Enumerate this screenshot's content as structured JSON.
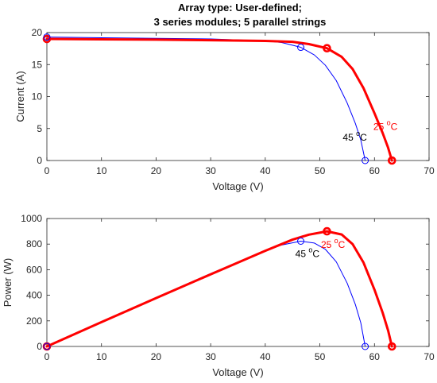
{
  "title_line1": "Array type: User-defined;",
  "title_line2": "3 series modules; 5 parallel strings",
  "colors": {
    "t25": "#ff0000",
    "t45": "#0000ff",
    "axes": "#262626"
  },
  "chart_data": [
    {
      "type": "line",
      "xlabel": "Voltage (V)",
      "ylabel": "Current (A)",
      "xlim": [
        0,
        70
      ],
      "ylim": [
        0,
        20
      ],
      "xticks": [
        "0",
        "10",
        "20",
        "30",
        "40",
        "50",
        "60",
        "70"
      ],
      "yticks": [
        "0",
        "5",
        "10",
        "15",
        "20"
      ],
      "grid": false,
      "series": [
        {
          "name": "25 °C",
          "color": "#ff0000",
          "x": [
            0,
            10,
            20,
            30,
            40,
            45,
            48,
            51.3,
            54,
            56,
            58,
            60,
            61.5,
            62.5,
            63.2
          ],
          "y": [
            19.0,
            18.95,
            18.9,
            18.8,
            18.7,
            18.55,
            18.2,
            17.55,
            16.2,
            14.3,
            11.3,
            7.4,
            4.3,
            2.0,
            0
          ]
        },
        {
          "name": "45 °C",
          "color": "#0000ff",
          "x": [
            0,
            10,
            20,
            30,
            40,
            43,
            46.5,
            49,
            51,
            53,
            55,
            56.5,
            57.5,
            58.3
          ],
          "y": [
            19.3,
            19.2,
            19.1,
            19.0,
            18.7,
            18.45,
            17.7,
            16.5,
            14.9,
            12.5,
            9.0,
            5.8,
            3.2,
            0
          ]
        }
      ],
      "markers": [
        {
          "series": "25 °C",
          "x": 0,
          "y": 19.0
        },
        {
          "series": "25 °C",
          "x": 51.3,
          "y": 17.55
        },
        {
          "series": "25 °C",
          "x": 63.2,
          "y": 0
        },
        {
          "series": "45 °C",
          "x": 0,
          "y": 19.3
        },
        {
          "series": "45 °C",
          "x": 46.5,
          "y": 17.7
        },
        {
          "series": "45 °C",
          "x": 58.3,
          "y": 0
        }
      ],
      "annotations": [
        {
          "text": "45 ",
          "sup": "o",
          "unit": "C",
          "x": 54.2,
          "y": 3.1,
          "color": "#000000"
        },
        {
          "text": "25 ",
          "sup": "o",
          "unit": "C",
          "x": 59.8,
          "y": 4.8,
          "color": "#ff0000"
        }
      ]
    },
    {
      "type": "line",
      "xlabel": "Voltage (V)",
      "ylabel": "Power (W)",
      "xlim": [
        0,
        70
      ],
      "ylim": [
        0,
        1000
      ],
      "xticks": [
        "0",
        "10",
        "20",
        "30",
        "40",
        "50",
        "60",
        "70"
      ],
      "yticks": [
        "0",
        "200",
        "400",
        "600",
        "800",
        "1000"
      ],
      "grid": false,
      "series": [
        {
          "name": "25 °C",
          "color": "#ff0000",
          "x": [
            0,
            10,
            20,
            30,
            40,
            45,
            48,
            51.3,
            54,
            56,
            58,
            60,
            61.5,
            62.5,
            63.2
          ],
          "y": [
            0,
            190,
            378,
            564,
            748,
            835,
            874,
            900,
            875,
            800,
            655,
            444,
            264,
            125,
            0
          ]
        },
        {
          "name": "45 °C",
          "color": "#0000ff",
          "x": [
            0,
            10,
            20,
            30,
            40,
            43,
            46.5,
            49,
            51,
            53,
            55,
            56.5,
            57.5,
            58.3
          ],
          "y": [
            0,
            192,
            382,
            570,
            748,
            793,
            823,
            808,
            760,
            662,
            495,
            328,
            184,
            0
          ]
        }
      ],
      "markers": [
        {
          "series": "25 °C",
          "x": 0,
          "y": 0
        },
        {
          "series": "25 °C",
          "x": 51.3,
          "y": 900
        },
        {
          "series": "25 °C",
          "x": 63.2,
          "y": 0
        },
        {
          "series": "45 °C",
          "x": 0,
          "y": 0
        },
        {
          "series": "45 °C",
          "x": 46.5,
          "y": 823
        },
        {
          "series": "45 °C",
          "x": 58.3,
          "y": 0
        }
      ],
      "annotations": [
        {
          "text": "45 ",
          "sup": "o",
          "unit": "C",
          "x": 45.5,
          "y": 700,
          "color": "#000000"
        },
        {
          "text": "25 ",
          "sup": "o",
          "unit": "C",
          "x": 50.2,
          "y": 770,
          "color": "#ff0000"
        }
      ]
    }
  ]
}
